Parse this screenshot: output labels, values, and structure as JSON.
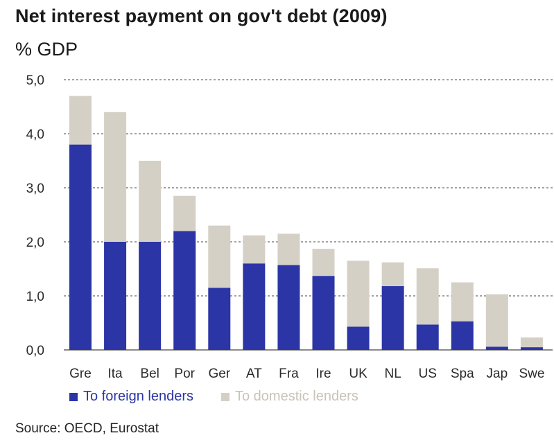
{
  "title": "Net interest payment on gov't debt (2009)",
  "unit_label": "% GDP",
  "source": "Source: OECD, Eurostat",
  "colors": {
    "foreign": "#2b35a6",
    "domestic": "#d5d0c6",
    "grid": "#444444"
  },
  "chart_data": {
    "type": "bar",
    "stacked": true,
    "title": "Net interest payment on gov't debt (2009)",
    "ylabel": "% GDP",
    "ylim": [
      0,
      5
    ],
    "yticks": [
      "0,0",
      "1,0",
      "2,0",
      "3,0",
      "4,0",
      "5,0"
    ],
    "grid": true,
    "legend_position": "bottom",
    "categories": [
      "Gre",
      "Ita",
      "Bel",
      "Por",
      "Ger",
      "AT",
      "Fra",
      "Ire",
      "UK",
      "NL",
      "US",
      "Spa",
      "Jap",
      "Swe"
    ],
    "series": [
      {
        "name": "To foreign lenders",
        "values": [
          3.8,
          2.0,
          2.0,
          2.2,
          1.15,
          1.6,
          1.57,
          1.37,
          0.43,
          1.18,
          0.47,
          0.53,
          0.06,
          0.05
        ]
      },
      {
        "name": "To domestic lenders",
        "values": [
          0.9,
          2.4,
          1.5,
          0.65,
          1.15,
          0.52,
          0.58,
          0.5,
          1.22,
          0.44,
          1.04,
          0.72,
          0.97,
          0.18
        ]
      }
    ]
  }
}
